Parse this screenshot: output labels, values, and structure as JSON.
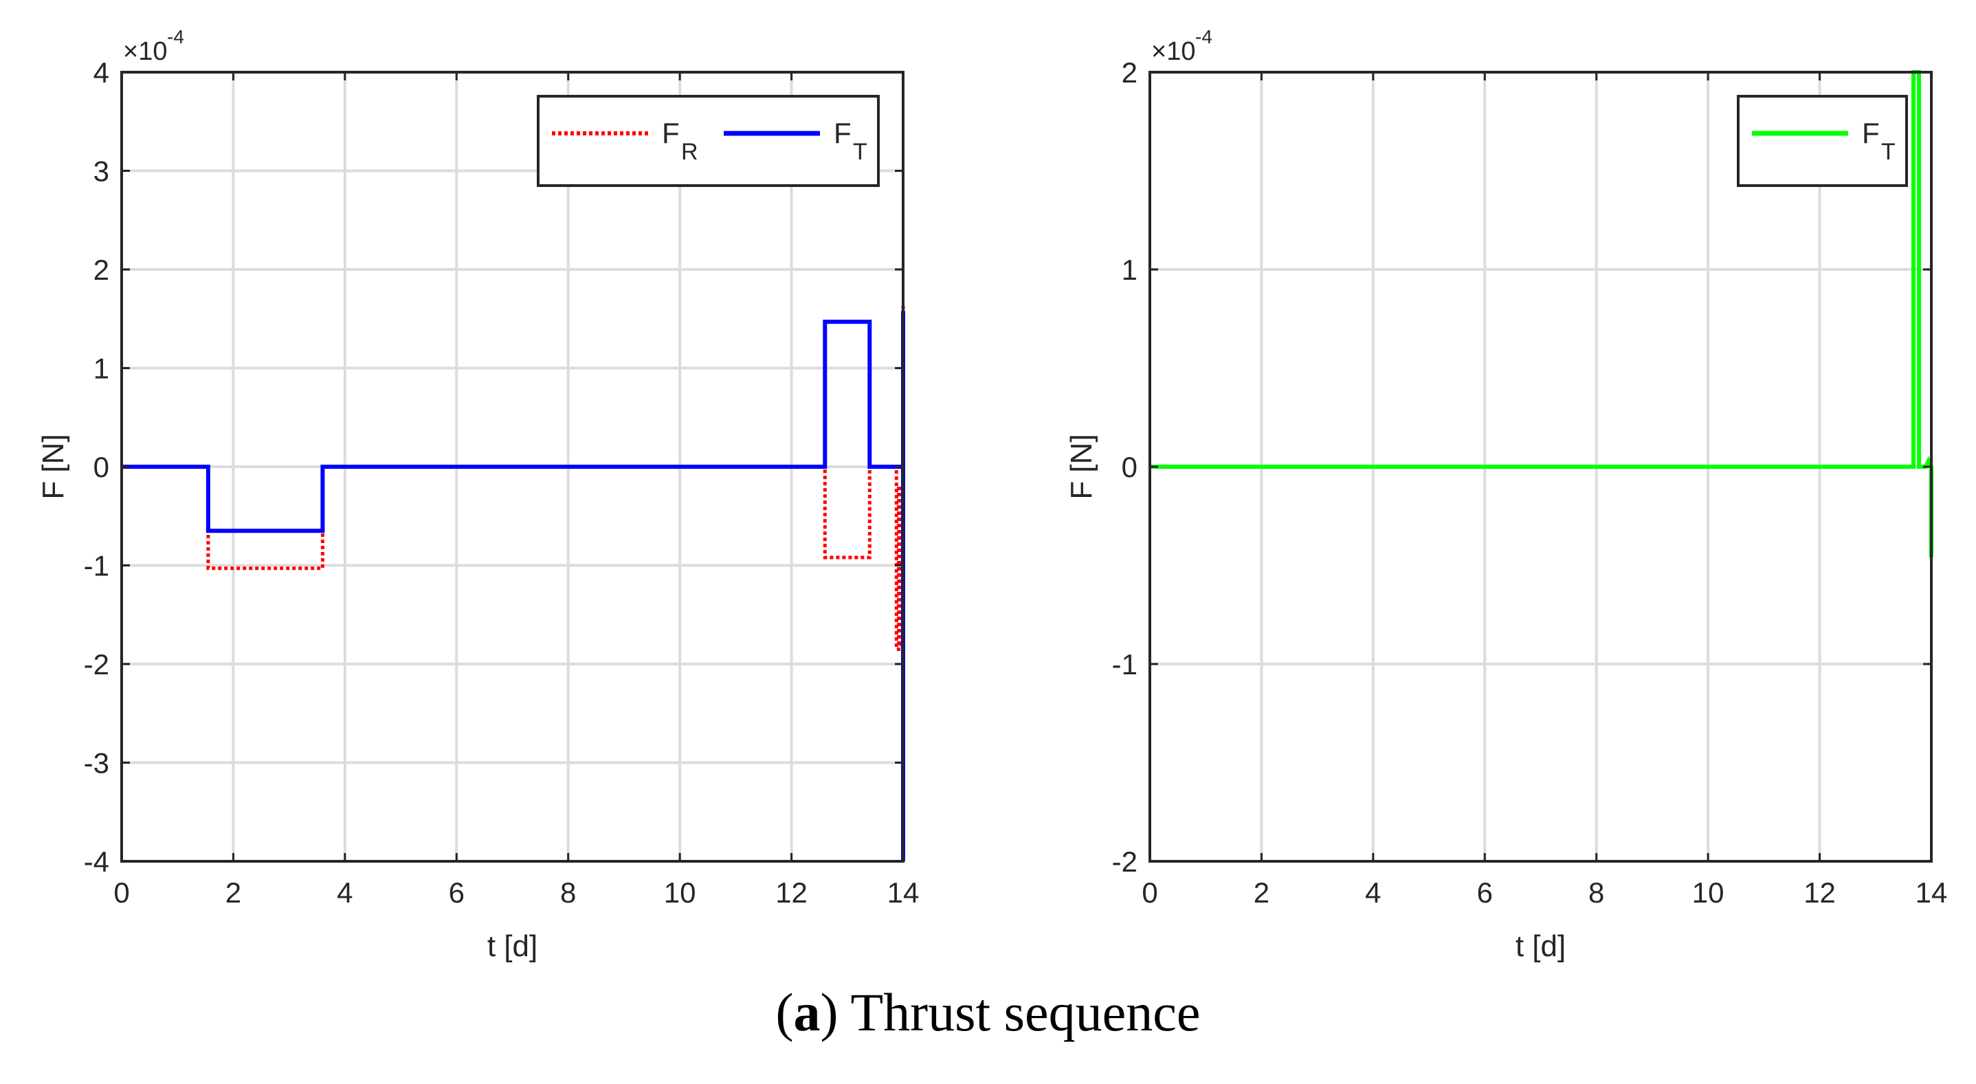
{
  "caption": {
    "letter": "a",
    "text": "Thrust sequence"
  },
  "chart_data": [
    {
      "type": "line",
      "xlabel": "t [d]",
      "ylabel": "F [N]",
      "xlim": [
        0,
        14
      ],
      "ylim": [
        -4,
        4
      ],
      "xticks": [
        0,
        2,
        4,
        6,
        8,
        10,
        12,
        14
      ],
      "yticks": [
        -4,
        -3,
        -2,
        -1,
        0,
        1,
        2,
        3,
        4
      ],
      "y_exponent_label": "×10",
      "y_exponent_power": "-4",
      "grid": true,
      "legend_position": "top-right",
      "legend": [
        {
          "base": "F",
          "sub": "R",
          "color": "#ff0000",
          "style": "dotted"
        },
        {
          "base": "F",
          "sub": "T",
          "color": "#0000ff",
          "style": "solid"
        }
      ],
      "series": [
        {
          "name": "F_R",
          "color": "#ff0000",
          "style": "dotted",
          "x": [
            0,
            1.55,
            1.55,
            3.6,
            3.6,
            12.6,
            12.6,
            13.4,
            13.4,
            13.88,
            13.88,
            13.92,
            13.92,
            13.96,
            13.96,
            14.0,
            14.0
          ],
          "y": [
            0,
            0,
            -1.03,
            -1.03,
            0,
            0,
            -0.92,
            -0.92,
            0,
            0,
            -1.85,
            -1.85,
            -0.2,
            -0.2,
            -1.8,
            -1.8,
            1.65
          ]
        },
        {
          "name": "F_T",
          "color": "#0000ff",
          "style": "solid",
          "x": [
            0,
            1.55,
            1.55,
            3.6,
            3.6,
            12.6,
            12.6,
            13.4,
            13.4,
            14.0,
            14.0,
            14.0
          ],
          "y": [
            0,
            0,
            -0.65,
            -0.65,
            0,
            0,
            1.47,
            1.47,
            0,
            0,
            -4,
            1.58
          ]
        }
      ]
    },
    {
      "type": "line",
      "xlabel": "t [d]",
      "ylabel": "F [N]",
      "xlim": [
        0,
        14
      ],
      "ylim": [
        -2,
        2
      ],
      "xticks": [
        0,
        2,
        4,
        6,
        8,
        10,
        12,
        14
      ],
      "yticks": [
        -2,
        -1,
        0,
        1,
        2
      ],
      "y_exponent_label": "×10",
      "y_exponent_power": "-4",
      "grid": true,
      "legend_position": "top-right",
      "legend": [
        {
          "base": "F",
          "sub": "T",
          "color": "#00ff00",
          "style": "solid"
        }
      ],
      "series": [
        {
          "name": "F_T",
          "color": "#00ff00",
          "style": "solid",
          "x": [
            0,
            13.68,
            13.68,
            13.78,
            13.78,
            13.9,
            13.95,
            14.0,
            14.0
          ],
          "y": [
            0,
            0,
            2.0,
            2.0,
            0,
            0,
            0.03,
            0,
            -0.46
          ]
        }
      ]
    }
  ]
}
